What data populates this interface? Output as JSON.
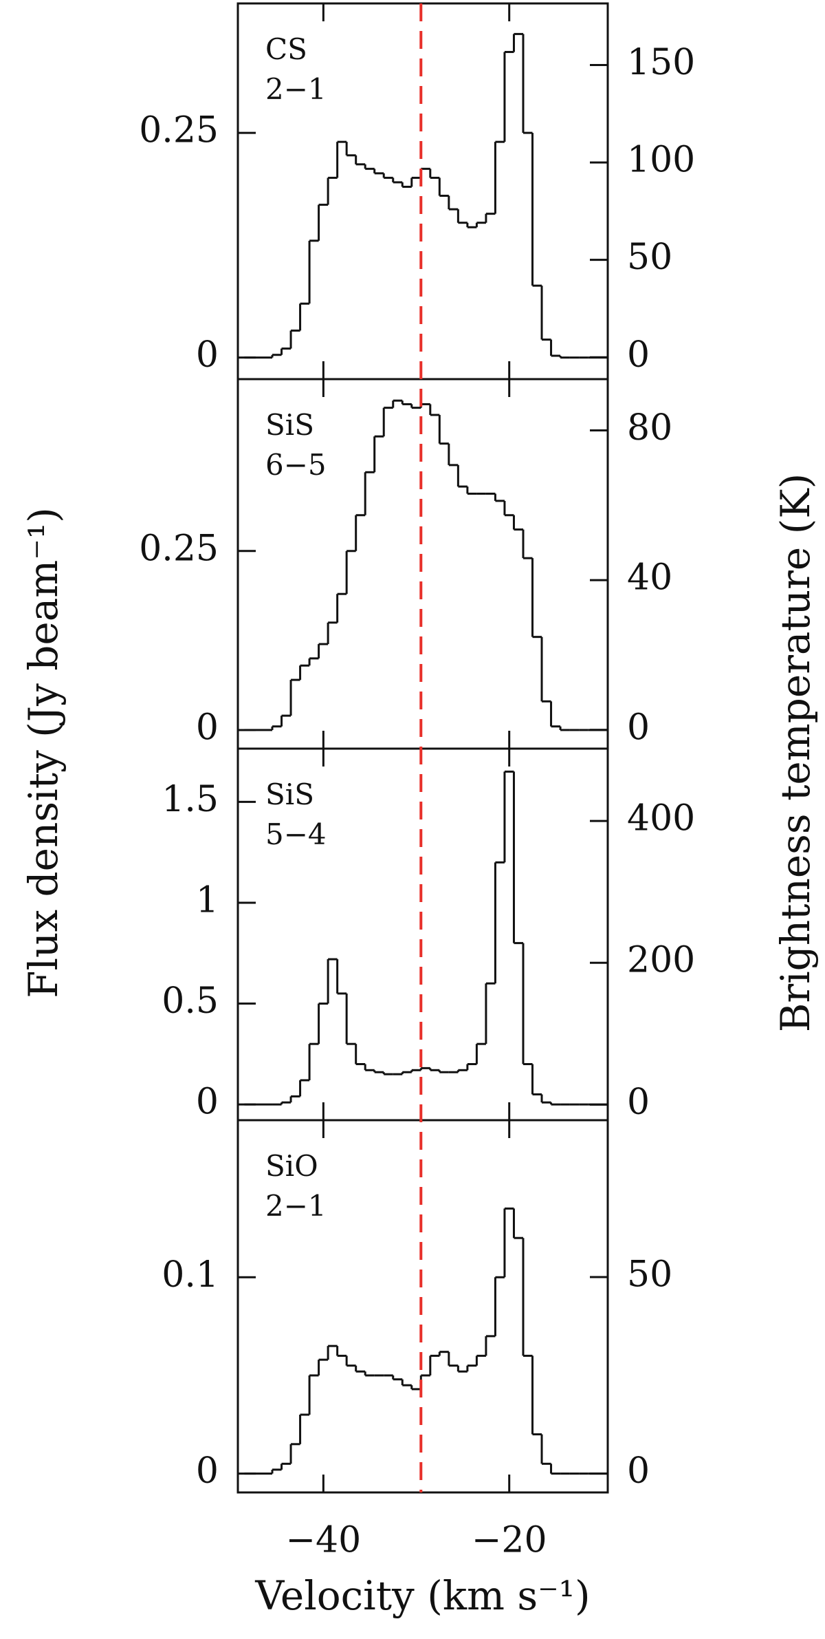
{
  "chart_data": {
    "type": "step",
    "xlabel": "Velocity (km s⁻¹)",
    "ylabel": "Flux density (Jy beam⁻¹)",
    "y2label": "Brightness temperature (K)",
    "xlim": [
      -49.2,
      -9.4
    ],
    "xticks": [
      {
        "value": -40,
        "label": "−40"
      },
      {
        "value": -20,
        "label": "−20"
      }
    ],
    "vline": {
      "x": -29.5,
      "color": "#e8302a"
    },
    "color": "#111111",
    "panels": [
      {
        "label": [
          "CS",
          "2−1"
        ],
        "ylim": [
          -0.024,
          0.394
        ],
        "yticks": [
          0,
          0.25
        ],
        "y2lim": [
          -11.2,
          181.6
        ],
        "y2ticks": [
          0,
          50,
          100,
          150
        ],
        "x": [
          -48,
          -47,
          -46,
          -45,
          -44,
          -43,
          -42,
          -41,
          -40,
          -39,
          -38,
          -37,
          -36,
          -35,
          -34,
          -33,
          -32,
          -31,
          -30,
          -29,
          -28,
          -27,
          -26,
          -25,
          -24,
          -23,
          -22,
          -21,
          -20,
          -19,
          -18,
          -17,
          -16,
          -15,
          -14,
          -13,
          -12,
          -11,
          -10
        ],
        "values": [
          0,
          0,
          0,
          0.003,
          0.01,
          0.03,
          0.06,
          0.13,
          0.17,
          0.2,
          0.24,
          0.225,
          0.215,
          0.21,
          0.205,
          0.2,
          0.195,
          0.19,
          0.2,
          0.21,
          0.2,
          0.18,
          0.165,
          0.15,
          0.145,
          0.15,
          0.16,
          0.24,
          0.34,
          0.36,
          0.25,
          0.08,
          0.02,
          0.002,
          0,
          0,
          0,
          0,
          0
        ]
      },
      {
        "label": [
          "SiS",
          "6−5"
        ],
        "ylim": [
          -0.026,
          0.49
        ],
        "yticks": [
          0,
          0.25
        ],
        "y2lim": [
          -5.0,
          93.7
        ],
        "y2ticks": [
          0,
          40,
          80
        ],
        "x": [
          -48,
          -47,
          -46,
          -45,
          -44,
          -43,
          -42,
          -41,
          -40,
          -39,
          -38,
          -37,
          -36,
          -35,
          -34,
          -33,
          -32,
          -31,
          -30,
          -29,
          -28,
          -27,
          -26,
          -25,
          -24,
          -23,
          -22,
          -21,
          -20,
          -19,
          -18,
          -17,
          -16,
          -15,
          -14,
          -13,
          -12,
          -11,
          -10
        ],
        "values": [
          0,
          0,
          0,
          0.005,
          0.02,
          0.07,
          0.09,
          0.1,
          0.12,
          0.15,
          0.19,
          0.25,
          0.3,
          0.36,
          0.41,
          0.45,
          0.46,
          0.455,
          0.45,
          0.455,
          0.44,
          0.4,
          0.37,
          0.34,
          0.33,
          0.33,
          0.33,
          0.32,
          0.3,
          0.28,
          0.24,
          0.13,
          0.04,
          0.005,
          0,
          0,
          0,
          0,
          0
        ]
      },
      {
        "label": [
          "SiS",
          "5−4"
        ],
        "ylim": [
          -0.078,
          1.764
        ],
        "yticks": [
          0,
          0.5,
          1,
          1.5
        ],
        "y2lim": [
          -22,
          502
        ],
        "y2ticks": [
          0,
          200,
          400
        ],
        "x": [
          -48,
          -47,
          -46,
          -45,
          -44,
          -43,
          -42,
          -41,
          -40,
          -39,
          -38,
          -37,
          -36,
          -35,
          -34,
          -33,
          -32,
          -31,
          -30,
          -29,
          -28,
          -27,
          -26,
          -25,
          -24,
          -23,
          -22,
          -21,
          -20,
          -19,
          -18,
          -17,
          -16,
          -15,
          -14,
          -13,
          -12,
          -11,
          -10
        ],
        "values": [
          0,
          0,
          0,
          0,
          0.01,
          0.04,
          0.12,
          0.3,
          0.5,
          0.72,
          0.55,
          0.3,
          0.2,
          0.17,
          0.16,
          0.15,
          0.15,
          0.16,
          0.17,
          0.18,
          0.17,
          0.16,
          0.16,
          0.17,
          0.2,
          0.3,
          0.6,
          1.2,
          1.65,
          0.8,
          0.2,
          0.05,
          0.01,
          0,
          0,
          0,
          0,
          0,
          0
        ]
      },
      {
        "label": [
          "SiO",
          "2−1"
        ],
        "ylim": [
          -0.0096,
          0.18
        ],
        "yticks": [
          0,
          0.1
        ],
        "y2lim": [
          -4.8,
          89.9
        ],
        "y2ticks": [
          0,
          50
        ],
        "x": [
          -48,
          -47,
          -46,
          -45,
          -44,
          -43,
          -42,
          -41,
          -40,
          -39,
          -38,
          -37,
          -36,
          -35,
          -34,
          -33,
          -32,
          -31,
          -30,
          -29,
          -28,
          -27,
          -26,
          -25,
          -24,
          -23,
          -22,
          -21,
          -20,
          -19,
          -18,
          -17,
          -16,
          -15,
          -14,
          -13,
          -12,
          -11,
          -10
        ],
        "values": [
          0,
          0,
          0,
          0.002,
          0.005,
          0.015,
          0.03,
          0.05,
          0.058,
          0.065,
          0.06,
          0.055,
          0.052,
          0.05,
          0.05,
          0.05,
          0.048,
          0.045,
          0.043,
          0.05,
          0.06,
          0.062,
          0.055,
          0.052,
          0.055,
          0.06,
          0.07,
          0.1,
          0.135,
          0.12,
          0.06,
          0.02,
          0.005,
          0,
          0,
          0,
          0,
          0,
          0
        ]
      }
    ]
  }
}
